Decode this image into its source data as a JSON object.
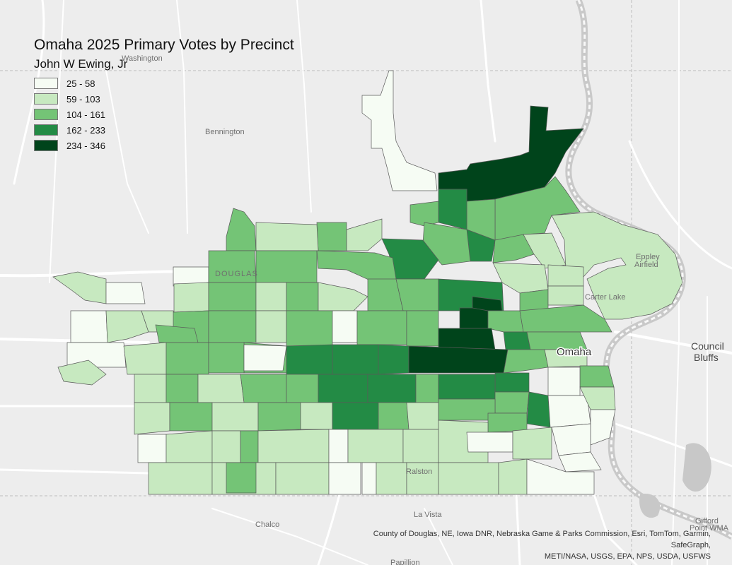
{
  "title": "Omaha 2025 Primary Votes by Precinct",
  "subtitle": "John W Ewing, Jr",
  "legend": [
    {
      "label": "25 - 58",
      "color": "#f6fcf4"
    },
    {
      "label": "59 - 103",
      "color": "#c7e9c0"
    },
    {
      "label": "104 - 161",
      "color": "#74c476"
    },
    {
      "label": "162 - 233",
      "color": "#238b45"
    },
    {
      "label": "234 - 346",
      "color": "#00441b"
    }
  ],
  "basemap_labels": {
    "washington": "Washington",
    "bennington": "Bennington",
    "douglas": "DOUGLAS",
    "eppley": "Eppley",
    "airfield": "Airfield",
    "carter_lake": "Carter Lake",
    "omaha": "Omaha",
    "council": "Council",
    "bluffs": "Bluffs",
    "ralston": "Ralston",
    "la_vista": "La Vista",
    "chalco": "Chalco",
    "gifford": "Gifford",
    "point_wma": "Point WMA",
    "papillion": "Papillion"
  },
  "attribution": {
    "line1": "County of Douglas, NE, Iowa DNR, Nebraska Game & Parks Commission, Esri, TomTom, Garmin, SafeGraph,",
    "line2": "METI/NASA, USGS, EPA, NPS, USDA, USFWS"
  }
}
